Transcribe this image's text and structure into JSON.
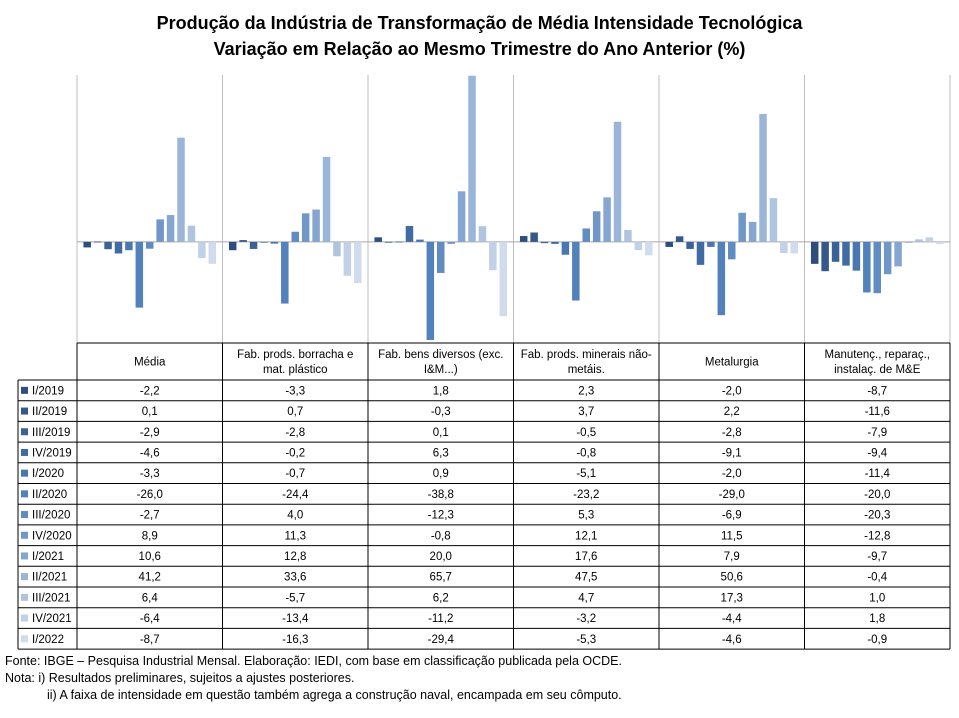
{
  "header": {
    "title_line1": "Produção da Indústria de Transformação de Média Intensidade Tecnológica",
    "title_line2": "Variação em Relação ao Mesmo Trimestre do Ano Anterior (%)"
  },
  "chart_data": {
    "type": "bar",
    "title": "Produção da Indústria de Transformação de Média Intensidade Tecnológica — Variação em Relação ao Mesmo Trimestre do Ano Anterior (%)",
    "categories": [
      "Média",
      "Fab. prods. borracha e mat. plástico",
      "Fab. bens diversos (exc. I&M...)",
      "Fab. prods. minerais não-metáis.",
      "Metalurgia",
      "Manutenç., reparaç., instalaç. de M&E"
    ],
    "category_lines": [
      [
        "Média"
      ],
      [
        "Fab. prods. borracha e",
        "mat. plástico"
      ],
      [
        "Fab. bens diversos (exc.",
        "I&M...)"
      ],
      [
        "Fab. prods. minerais não-",
        "metáis."
      ],
      [
        "Metalurgia"
      ],
      [
        "Manutenç., reparaç.,",
        "instalaç. de M&E"
      ]
    ],
    "ylim": [
      -40,
      66
    ],
    "grid": false,
    "legend": "table-left",
    "value_labels": [
      [
        "-2,2",
        "-3,3",
        "1,8",
        "2,3",
        "-2,0",
        "-8,7"
      ],
      [
        "0,1",
        "0,7",
        "-0,3",
        "3,7",
        "2,2",
        "-11,6"
      ],
      [
        "-2,9",
        "-2,8",
        "0,1",
        "-0,5",
        "-2,8",
        "-7,9"
      ],
      [
        "-4,6",
        "-0,2",
        "6,3",
        "-0,8",
        "-9,1",
        "-9,4"
      ],
      [
        "-3,3",
        "-0,7",
        "0,9",
        "-5,1",
        "-2,0",
        "-11,4"
      ],
      [
        "-26,0",
        "-24,4",
        "-38,8",
        "-23,2",
        "-29,0",
        "-20,0"
      ],
      [
        "-2,7",
        "4,0",
        "-12,3",
        "5,3",
        "-6,9",
        "-20,3"
      ],
      [
        "8,9",
        "11,3",
        "-0,8",
        "12,1",
        "11,5",
        "-12,8"
      ],
      [
        "10,6",
        "12,8",
        "20,0",
        "17,6",
        "7,9",
        "-9,7"
      ],
      [
        "41,2",
        "33,6",
        "65,7",
        "47,5",
        "50,6",
        "-0,4"
      ],
      [
        "6,4",
        "-5,7",
        "6,2",
        "4,7",
        "17,3",
        "1,0"
      ],
      [
        "-6,4",
        "-13,4",
        "-11,2",
        "-3,2",
        "-4,4",
        "1,8"
      ],
      [
        "-8,7",
        "-16,3",
        "-29,4",
        "-5,3",
        "-4,6",
        "-0,9"
      ]
    ],
    "series": [
      {
        "name": "I/2019",
        "color": "#2e4f7e",
        "values": [
          -2.2,
          -3.3,
          1.8,
          2.3,
          -2.0,
          -8.7
        ]
      },
      {
        "name": "II/2019",
        "color": "#335889",
        "values": [
          0.1,
          0.7,
          -0.3,
          3.7,
          2.2,
          -11.6
        ]
      },
      {
        "name": "III/2019",
        "color": "#3a6296",
        "values": [
          -2.9,
          -2.8,
          0.1,
          -0.5,
          -2.8,
          -7.9
        ]
      },
      {
        "name": "IV/2019",
        "color": "#416ca3",
        "values": [
          -4.6,
          -0.2,
          6.3,
          -0.8,
          -9.1,
          -9.4
        ]
      },
      {
        "name": "I/2020",
        "color": "#4a77b0",
        "values": [
          -3.3,
          -0.7,
          0.9,
          -5.1,
          -2.0,
          -11.4
        ]
      },
      {
        "name": "II/2020",
        "color": "#5281bb",
        "values": [
          -26.0,
          -24.4,
          -38.8,
          -23.2,
          -29.0,
          -20.0
        ]
      },
      {
        "name": "III/2020",
        "color": "#618cc2",
        "values": [
          -2.7,
          4.0,
          -12.3,
          5.3,
          -6.9,
          -20.3
        ]
      },
      {
        "name": "IV/2020",
        "color": "#7097c8",
        "values": [
          8.9,
          11.3,
          -0.8,
          12.1,
          11.5,
          -12.8
        ]
      },
      {
        "name": "I/2021",
        "color": "#85a6d0",
        "values": [
          10.6,
          12.8,
          20.0,
          17.6,
          7.9,
          -9.7
        ]
      },
      {
        "name": "II/2021",
        "color": "#9bb5d8",
        "values": [
          41.2,
          33.6,
          65.7,
          47.5,
          50.6,
          -0.4
        ]
      },
      {
        "name": "III/2021",
        "color": "#b0c4e0",
        "values": [
          6.4,
          -5.7,
          6.2,
          4.7,
          17.3,
          1.0
        ]
      },
      {
        "name": "IV/2021",
        "color": "#c1d1e8",
        "values": [
          -6.4,
          -13.4,
          -11.2,
          -3.2,
          -4.4,
          1.8
        ]
      },
      {
        "name": "I/2022",
        "color": "#d0dcee",
        "values": [
          -8.7,
          -16.3,
          -29.4,
          -5.3,
          -4.6,
          -0.9
        ]
      }
    ]
  },
  "footer": {
    "source": "Fonte: IBGE – Pesquisa Industrial Mensal. Elaboração: IEDI, com base em classificação publicada pela OCDE.",
    "note1": "Nota: i) Resultados preliminares, sujeitos a ajustes posteriores.",
    "note2": "ii) A faixa de intensidade em questão também agrega a construção naval, encampada em seu cômputo."
  }
}
